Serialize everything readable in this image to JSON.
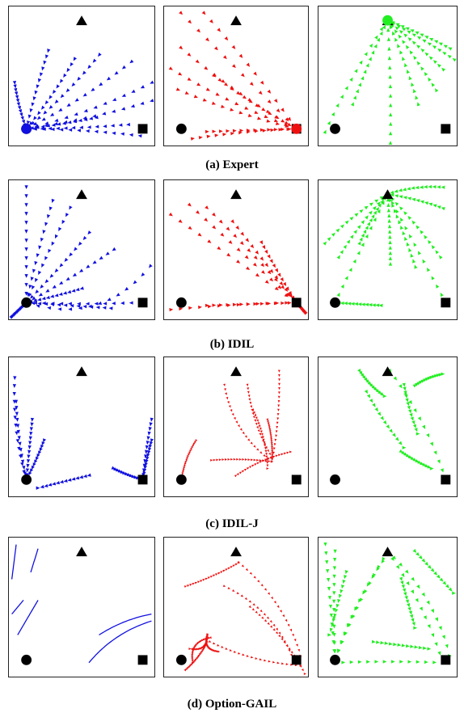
{
  "colors": {
    "mode1": "#1010e0",
    "mode2": "#ee1010",
    "mode3": "#22ee22",
    "landmark": "#000000"
  },
  "landmarks": [
    "triangle",
    "circle",
    "square"
  ],
  "rows": [
    {
      "caption": "(a) Expert"
    },
    {
      "caption": "(b) IDIL"
    },
    {
      "caption": "(c) IDIL-J"
    },
    {
      "caption": "(d) Option-GAIL"
    }
  ]
}
